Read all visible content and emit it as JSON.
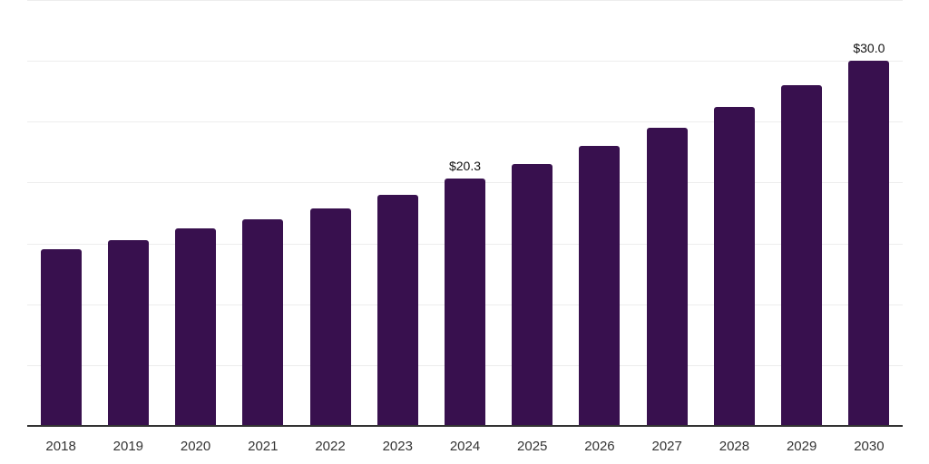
{
  "chart_data": {
    "type": "bar",
    "title": "",
    "categories": [
      "2018",
      "2019",
      "2020",
      "2021",
      "2022",
      "2023",
      "2024",
      "2025",
      "2026",
      "2027",
      "2028",
      "2029",
      "2030"
    ],
    "values": [
      14.5,
      15.3,
      16.2,
      17.0,
      17.9,
      19.0,
      20.3,
      21.5,
      23.0,
      24.5,
      26.2,
      28.0,
      30.0
    ],
    "data_labels": {
      "2024": "$20.3",
      "2030": "$30.0"
    },
    "xlabel": "",
    "ylabel": "",
    "ylim": [
      0,
      35
    ],
    "gridline_step": 5,
    "grid": true,
    "y_tick_labels_visible": false,
    "legend": false,
    "colors": {
      "bar": "#38104E",
      "gridline": "#EDEDED",
      "axis_line": "#333333",
      "tick_label": "#333333",
      "value_label": "#111111",
      "background": "#FFFFFF"
    }
  }
}
